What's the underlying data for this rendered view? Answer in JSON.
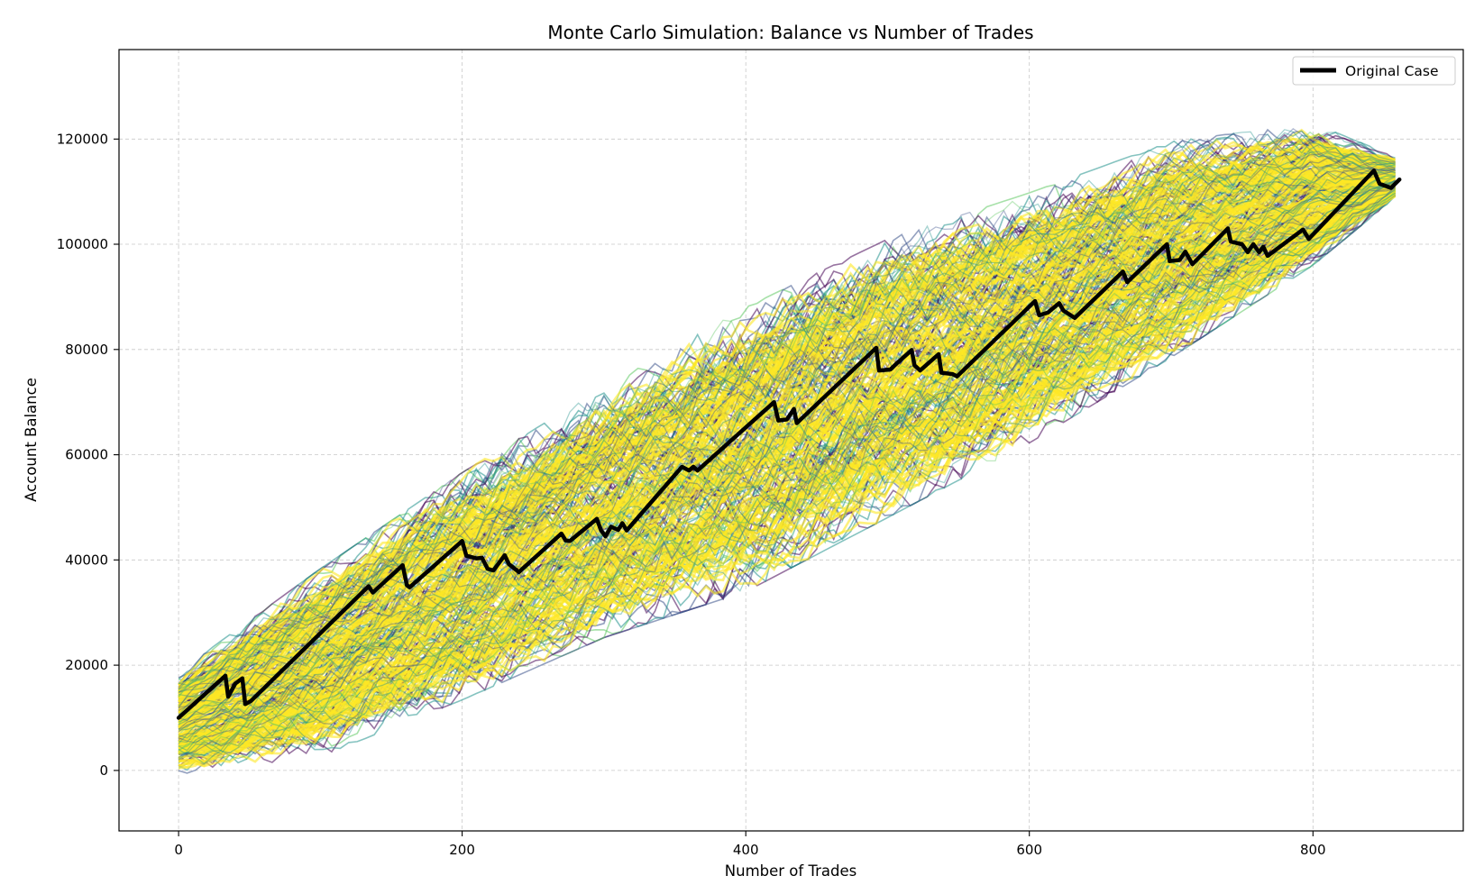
{
  "chart_data": {
    "type": "line",
    "title": "Monte Carlo Simulation: Balance vs Number of Trades",
    "xlabel": "Number of Trades",
    "ylabel": "Account Balance",
    "xlim": [
      -42,
      906
    ],
    "ylim": [
      -11500,
      137000
    ],
    "xticks": [
      0,
      200,
      400,
      600,
      800
    ],
    "xtick_labels": [
      "0",
      "200",
      "400",
      "600",
      "800"
    ],
    "yticks": [
      0,
      20000,
      40000,
      60000,
      80000,
      100000,
      120000
    ],
    "ytick_labels": [
      "0",
      "20000",
      "40000",
      "60000",
      "80000",
      "100000",
      "120000"
    ],
    "grid": true,
    "legend": {
      "position": "top-right",
      "entries": [
        "Original Case"
      ]
    },
    "simulation": {
      "n_trades": 862,
      "start_balance": 10000,
      "mean_final_balance": 112500,
      "band_edges": [
        {
          "trade": 0,
          "low": 0,
          "high": 18000
        },
        {
          "trade": 100,
          "low": 4000,
          "high": 37000
        },
        {
          "trade": 200,
          "low": 15000,
          "high": 55000
        },
        {
          "trade": 300,
          "low": 27000,
          "high": 71000
        },
        {
          "trade": 400,
          "low": 36000,
          "high": 86000
        },
        {
          "trade": 500,
          "low": 50000,
          "high": 99000
        },
        {
          "trade": 600,
          "low": 64000,
          "high": 108000
        },
        {
          "trade": 700,
          "low": 80000,
          "high": 118000
        },
        {
          "trade": 800,
          "low": 97000,
          "high": 122000
        },
        {
          "trade": 862,
          "low": 110000,
          "high": 116000
        }
      ],
      "colormap": [
        "#440154",
        "#3b528b",
        "#21918c",
        "#5ec962",
        "#fde725"
      ]
    },
    "series": [
      {
        "name": "Original Case",
        "color": "#000000",
        "points": [
          [
            0,
            10000
          ],
          [
            33,
            18000
          ],
          [
            35,
            14000
          ],
          [
            40,
            16500
          ],
          [
            45,
            17500
          ],
          [
            47,
            12600
          ],
          [
            51,
            13200
          ],
          [
            134,
            35000
          ],
          [
            137,
            33800
          ],
          [
            158,
            39000
          ],
          [
            161,
            35200
          ],
          [
            163,
            34800
          ],
          [
            200,
            43600
          ],
          [
            203,
            40800
          ],
          [
            210,
            40300
          ],
          [
            214,
            40400
          ],
          [
            218,
            38300
          ],
          [
            222,
            38000
          ],
          [
            230,
            40900
          ],
          [
            233,
            39200
          ],
          [
            240,
            37700
          ],
          [
            270,
            45000
          ],
          [
            273,
            43700
          ],
          [
            276,
            43600
          ],
          [
            295,
            47800
          ],
          [
            298,
            45600
          ],
          [
            301,
            44500
          ],
          [
            305,
            46300
          ],
          [
            310,
            45700
          ],
          [
            313,
            47000
          ],
          [
            316,
            45600
          ],
          [
            355,
            57700
          ],
          [
            360,
            57000
          ],
          [
            363,
            57700
          ],
          [
            366,
            57000
          ],
          [
            420,
            70000
          ],
          [
            423,
            66500
          ],
          [
            429,
            66700
          ],
          [
            434,
            68700
          ],
          [
            436,
            66000
          ],
          [
            492,
            80300
          ],
          [
            494,
            76000
          ],
          [
            502,
            76200
          ],
          [
            507,
            77500
          ],
          [
            517,
            79900
          ],
          [
            519,
            77000
          ],
          [
            523,
            76000
          ],
          [
            536,
            79100
          ],
          [
            538,
            75600
          ],
          [
            546,
            75300
          ],
          [
            549,
            74900
          ],
          [
            604,
            89200
          ],
          [
            607,
            86500
          ],
          [
            613,
            87000
          ],
          [
            621,
            88800
          ],
          [
            624,
            87400
          ],
          [
            632,
            86000
          ],
          [
            666,
            94800
          ],
          [
            669,
            92800
          ],
          [
            697,
            100000
          ],
          [
            699,
            96800
          ],
          [
            706,
            97000
          ],
          [
            710,
            98600
          ],
          [
            715,
            96200
          ],
          [
            740,
            103000
          ],
          [
            742,
            100500
          ],
          [
            750,
            100000
          ],
          [
            754,
            98500
          ],
          [
            758,
            100000
          ],
          [
            762,
            98500
          ],
          [
            765,
            99500
          ],
          [
            768,
            97800
          ],
          [
            793,
            102800
          ],
          [
            797,
            101000
          ],
          [
            843,
            114000
          ],
          [
            847,
            111500
          ],
          [
            850,
            111200
          ],
          [
            855,
            110700
          ],
          [
            861,
            112300
          ]
        ]
      }
    ]
  }
}
